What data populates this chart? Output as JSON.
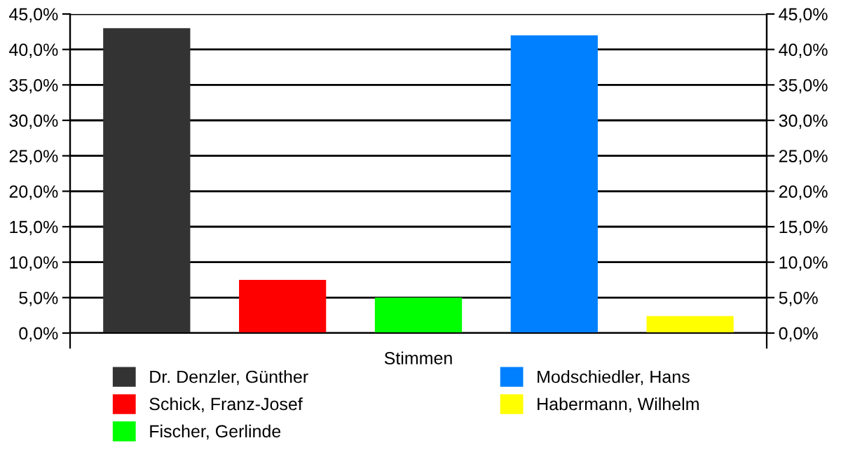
{
  "chart_data": {
    "type": "bar",
    "xlabel": "Stimmen",
    "categories": [
      null
    ],
    "series": [
      {
        "name": "Dr. Denzler, Günther",
        "color": "#333333",
        "values": [
          43.0
        ]
      },
      {
        "name": "Schick, Franz-Josef",
        "color": "#ff0000",
        "values": [
          7.5
        ]
      },
      {
        "name": "Fischer, Gerlinde",
        "color": "#00ff00",
        "values": [
          5.0
        ]
      },
      {
        "name": "Modschiedler, Hans",
        "color": "#0080ff",
        "values": [
          42.0
        ]
      },
      {
        "name": "Habermann, Wilhelm",
        "color": "#ffff00",
        "values": [
          2.4
        ]
      }
    ],
    "ylim": [
      0,
      45
    ],
    "yticks": [
      {
        "value": 0,
        "label": "0,0%"
      },
      {
        "value": 5,
        "label": "5,0%"
      },
      {
        "value": 10,
        "label": "10,0%"
      },
      {
        "value": 15,
        "label": "15,0%"
      },
      {
        "value": 20,
        "label": "20,0%"
      },
      {
        "value": 25,
        "label": "25,0%"
      },
      {
        "value": 30,
        "label": "30,0%"
      },
      {
        "value": 35,
        "label": "35,0%"
      },
      {
        "value": 40,
        "label": "40,0%"
      },
      {
        "value": 45,
        "label": "45,0%"
      }
    ],
    "y2lim": [
      0,
      45
    ],
    "y2ticks": [
      {
        "value": 0,
        "label": "0,0%"
      },
      {
        "value": 5,
        "label": "5,0%"
      },
      {
        "value": 10,
        "label": "10,0%"
      },
      {
        "value": 15,
        "label": "15,0%"
      },
      {
        "value": 20,
        "label": "20,0%"
      },
      {
        "value": 25,
        "label": "25,0%"
      },
      {
        "value": 30,
        "label": "30,0%"
      },
      {
        "value": 35,
        "label": "35,0%"
      },
      {
        "value": 40,
        "label": "40,0%"
      },
      {
        "value": 45,
        "label": "45,0%"
      }
    ],
    "grid": "y",
    "legend": "bottom"
  }
}
